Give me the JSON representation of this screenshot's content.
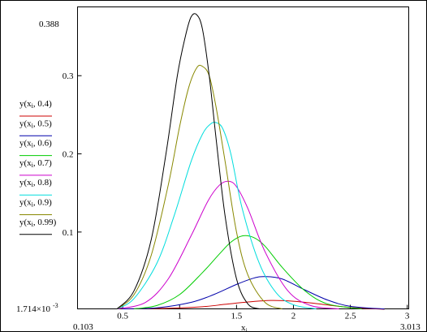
{
  "chart_data": {
    "type": "line",
    "xlabel": "x",
    "xlabel_subscript": "i",
    "x_range_labels": {
      "min": "0.103",
      "max": "3.013"
    },
    "y_range_labels": {
      "min": "1.714×10",
      "min_exponent": "-3",
      "max": "0.388"
    },
    "xlim": [
      0.103,
      3.013
    ],
    "ylim": [
      0.001714,
      0.388
    ],
    "x_ticks": [
      {
        "v": 0.5,
        "label": "0.5"
      },
      {
        "v": 1,
        "label": "1"
      },
      {
        "v": 1.5,
        "label": "1.5"
      },
      {
        "v": 2,
        "label": "2"
      },
      {
        "v": 2.5,
        "label": "2.5"
      },
      {
        "v": 3,
        "label": "3"
      }
    ],
    "y_ticks": [
      {
        "v": 0.1,
        "label": "0.1"
      },
      {
        "v": 0.2,
        "label": "0.2"
      },
      {
        "v": 0.3,
        "label": "0.3"
      }
    ],
    "legend_position": "left",
    "legend_label_prefix": "y",
    "legend_label_var": "x",
    "legend_label_sub": "i",
    "series": [
      {
        "param": "0.4",
        "color": "#cc0000",
        "x": [
          0.5,
          0.9,
          1.2,
          1.4,
          1.6,
          1.8,
          2.0,
          2.2,
          2.5,
          2.8
        ],
        "y": [
          0.0017,
          0.0025,
          0.0045,
          0.0075,
          0.0105,
          0.0125,
          0.0115,
          0.0085,
          0.0035,
          0.0012
        ]
      },
      {
        "param": "0.5",
        "color": "#0000aa",
        "x": [
          0.5,
          0.8,
          1.1,
          1.3,
          1.5,
          1.65,
          1.75,
          1.9,
          2.1,
          2.3,
          2.5,
          2.8
        ],
        "y": [
          0.0017,
          0.003,
          0.01,
          0.02,
          0.033,
          0.041,
          0.043,
          0.04,
          0.026,
          0.013,
          0.005,
          0.0015
        ]
      },
      {
        "param": "0.6",
        "color": "#00cc00",
        "x": [
          0.6,
          0.8,
          1.0,
          1.2,
          1.35,
          1.45,
          1.55,
          1.65,
          1.75,
          1.9,
          2.1,
          2.3,
          2.6
        ],
        "y": [
          0.0017,
          0.006,
          0.02,
          0.048,
          0.072,
          0.087,
          0.095,
          0.093,
          0.082,
          0.055,
          0.025,
          0.008,
          0.0017
        ]
      },
      {
        "param": "0.7",
        "color": "#cc00cc",
        "x": [
          0.45,
          0.7,
          0.9,
          1.1,
          1.25,
          1.35,
          1.43,
          1.5,
          1.6,
          1.75,
          1.95,
          2.15,
          2.4
        ],
        "y": [
          0.0017,
          0.01,
          0.04,
          0.095,
          0.14,
          0.16,
          0.165,
          0.158,
          0.13,
          0.075,
          0.025,
          0.006,
          0.0017
        ]
      },
      {
        "param": "0.8",
        "color": "#00dddd",
        "x": [
          0.45,
          0.6,
          0.8,
          0.95,
          1.1,
          1.2,
          1.27,
          1.32,
          1.38,
          1.45,
          1.55,
          1.7,
          1.85,
          2.0,
          2.2
        ],
        "y": [
          0.0017,
          0.015,
          0.06,
          0.12,
          0.19,
          0.225,
          0.238,
          0.24,
          0.232,
          0.2,
          0.13,
          0.06,
          0.022,
          0.007,
          0.0017
        ]
      },
      {
        "param": "0.9",
        "color": "#888800",
        "x": [
          0.45,
          0.6,
          0.75,
          0.9,
          1.0,
          1.08,
          1.15,
          1.2,
          1.26,
          1.32,
          1.4,
          1.5,
          1.6,
          1.75,
          1.9
        ],
        "y": [
          0.0017,
          0.02,
          0.07,
          0.16,
          0.235,
          0.285,
          0.31,
          0.312,
          0.3,
          0.26,
          0.19,
          0.1,
          0.045,
          0.01,
          0.0017
        ]
      },
      {
        "param": "0.99",
        "color": "#000000",
        "x": [
          0.45,
          0.6,
          0.75,
          0.88,
          0.98,
          1.05,
          1.1,
          1.15,
          1.2,
          1.26,
          1.32,
          1.4,
          1.5,
          1.6,
          1.7
        ],
        "y": [
          0.0017,
          0.025,
          0.09,
          0.2,
          0.3,
          0.35,
          0.375,
          0.378,
          0.36,
          0.3,
          0.22,
          0.12,
          0.04,
          0.008,
          0.0017
        ]
      }
    ]
  }
}
